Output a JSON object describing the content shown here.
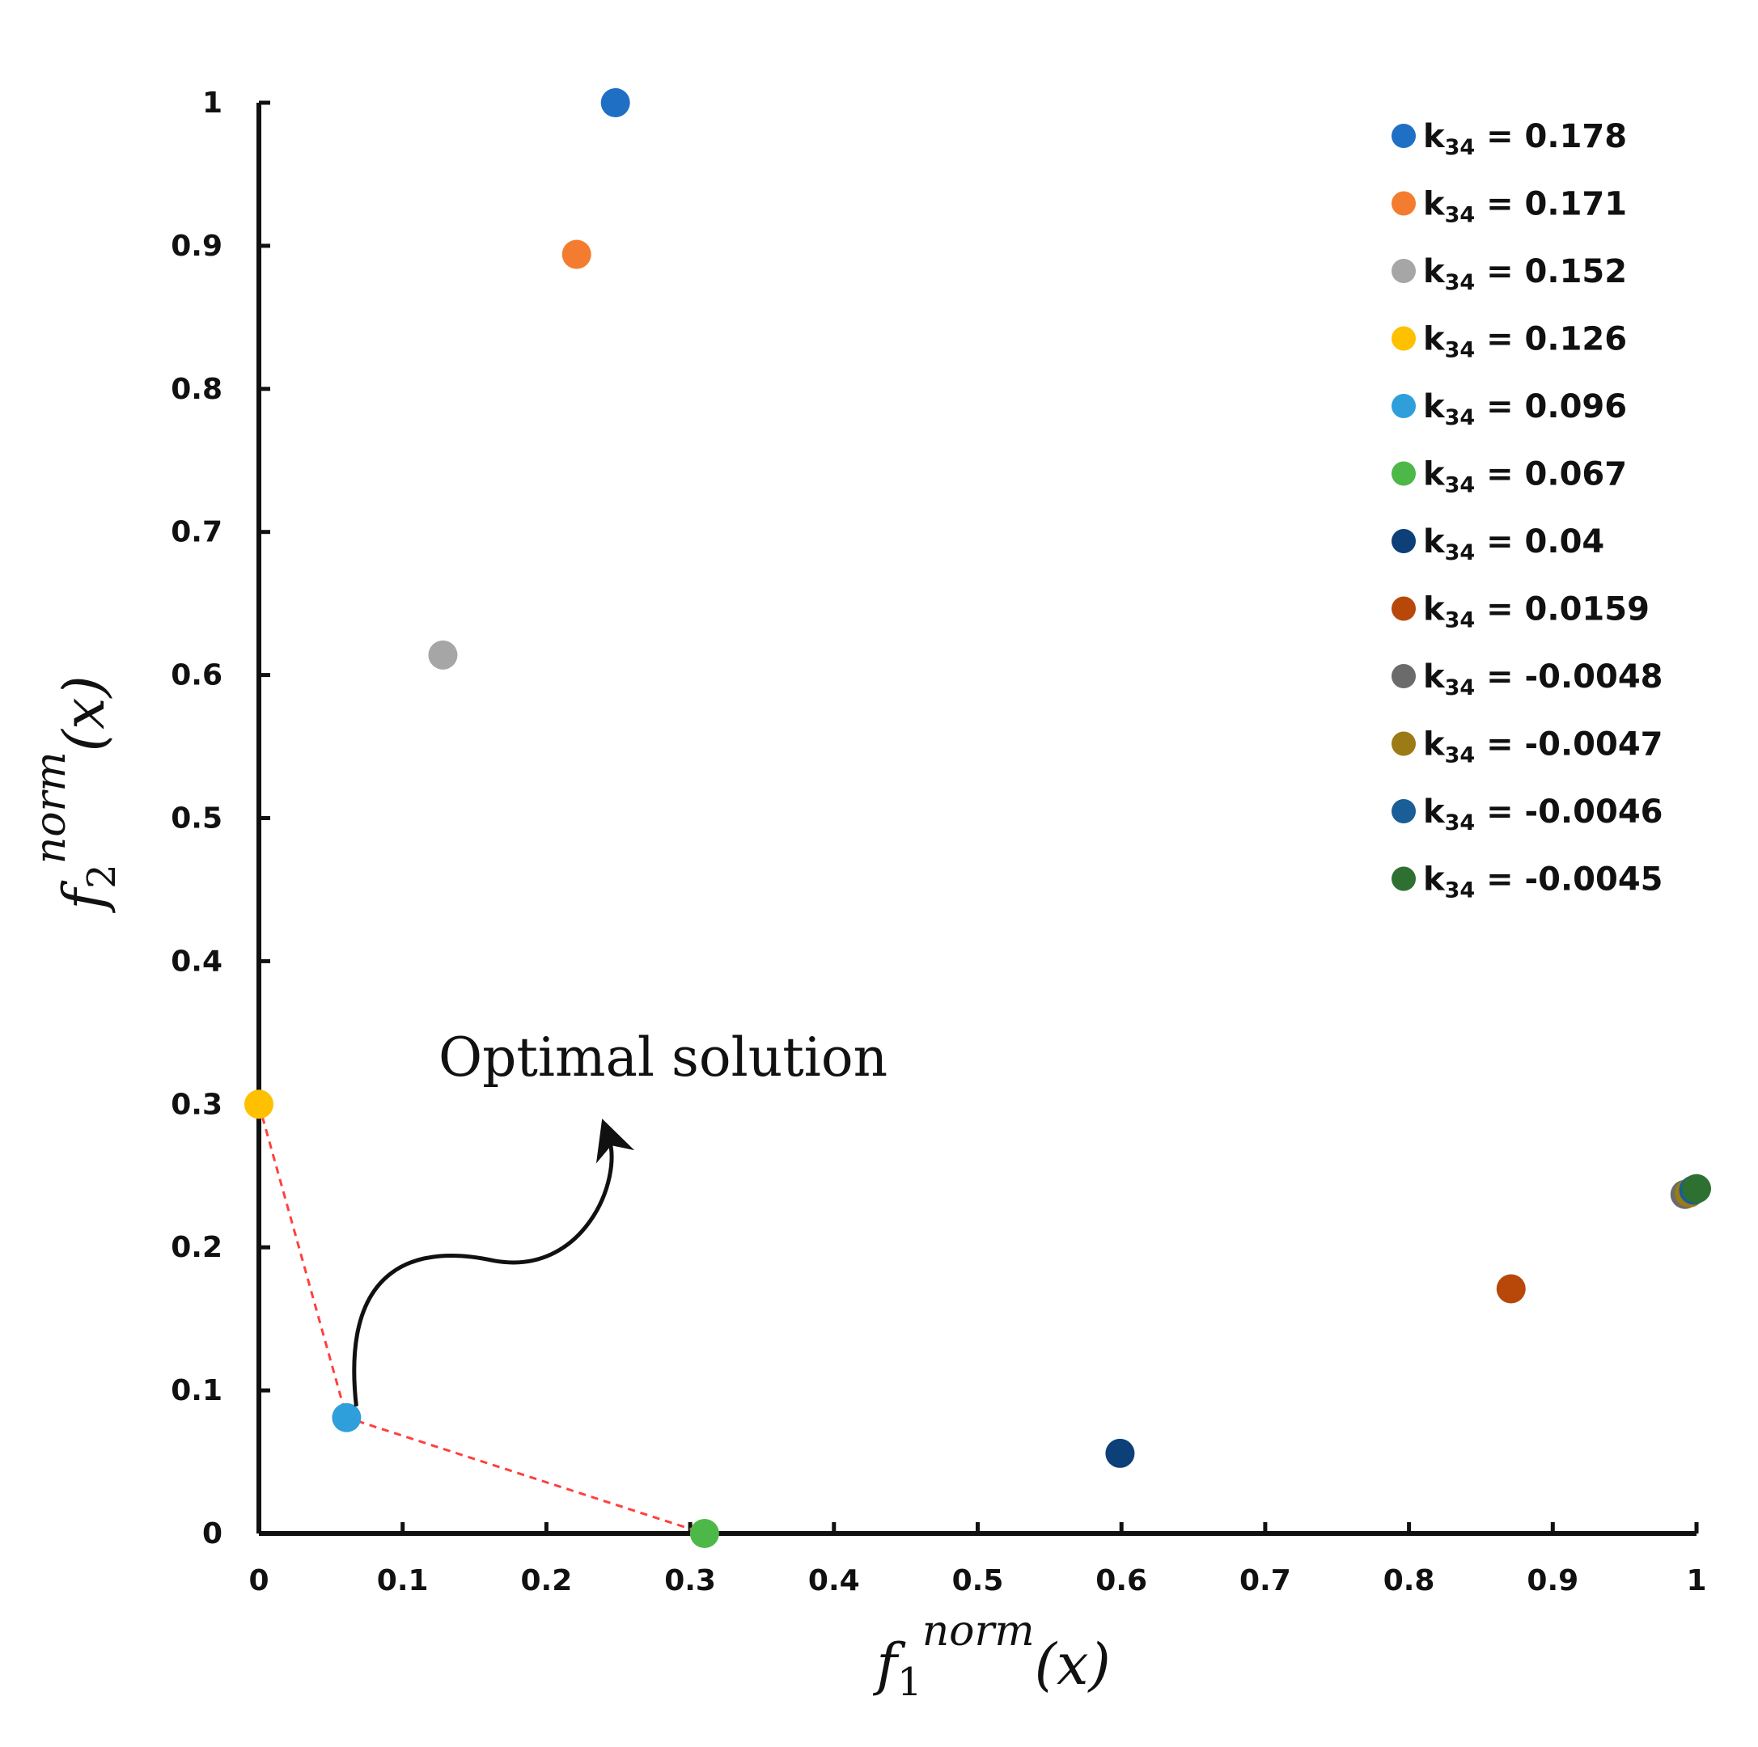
{
  "chart_data": {
    "type": "scatter",
    "xlim": [
      0,
      1
    ],
    "ylim": [
      0,
      1
    ],
    "xticks": [
      "0",
      "0.1",
      "0.2",
      "0.3",
      "0.4",
      "0.5",
      "0.6",
      "0.7",
      "0.8",
      "0.9",
      "1"
    ],
    "yticks": [
      "0",
      "0.1",
      "0.2",
      "0.3",
      "0.4",
      "0.5",
      "0.6",
      "0.7",
      "0.8",
      "0.9",
      "1"
    ],
    "xlabel": {
      "base": "f",
      "sub": "1",
      "sup": "norm",
      "arg": "(x)"
    },
    "ylabel": {
      "base": "f",
      "sub": "2",
      "sup": "norm",
      "arg": "(x)"
    },
    "legend_position": "top-right",
    "legend_prefix": "k",
    "legend_subscript": "34",
    "grid": false,
    "series": [
      {
        "name": "k34 = 0.178",
        "label_value": " = 0.178",
        "color": "#1f6fc5",
        "x": 0.248,
        "y": 1.0
      },
      {
        "name": "k34 = 0.171",
        "label_value": " = 0.171",
        "color": "#f47c30",
        "x": 0.221,
        "y": 0.894
      },
      {
        "name": "k34 = 0.152",
        "label_value": " = 0.152",
        "color": "#a6a6a6",
        "x": 0.128,
        "y": 0.614
      },
      {
        "name": "k34 = 0.126",
        "label_value": " = 0.126",
        "color": "#ffc000",
        "x": 0.0,
        "y": 0.3
      },
      {
        "name": "k34 = 0.096",
        "label_value": " = 0.096",
        "color": "#2e9fdb",
        "x": 0.061,
        "y": 0.081
      },
      {
        "name": "k34 = 0.067",
        "label_value": " = 0.067",
        "color": "#4db848",
        "x": 0.31,
        "y": 0.0
      },
      {
        "name": "k34 = 0.04",
        "label_value": " = 0.04",
        "color": "#0d3f78",
        "x": 0.599,
        "y": 0.056
      },
      {
        "name": "k34 = 0.0159",
        "label_value": " = 0.0159",
        "color": "#b8480a",
        "x": 0.871,
        "y": 0.171
      },
      {
        "name": "k34 = -0.0048",
        "label_value": " = -0.0048",
        "color": "#6b6b6b",
        "x": 0.992,
        "y": 0.237
      },
      {
        "name": "k34 = -0.0047",
        "label_value": " = -0.0047",
        "color": "#9c7a15",
        "x": 0.995,
        "y": 0.238
      },
      {
        "name": "k34 = -0.0046",
        "label_value": " = -0.0046",
        "color": "#195e96",
        "x": 0.998,
        "y": 0.24
      },
      {
        "name": "k34 = -0.0045",
        "label_value": " = -0.0045",
        "color": "#2e7032",
        "x": 1.0,
        "y": 0.241
      }
    ],
    "pareto_front": [
      [
        0.0,
        0.3
      ],
      [
        0.061,
        0.081
      ],
      [
        0.31,
        0.0
      ]
    ],
    "pareto_color": "#ff4040",
    "annotation": {
      "text": "Optimal solution"
    }
  }
}
